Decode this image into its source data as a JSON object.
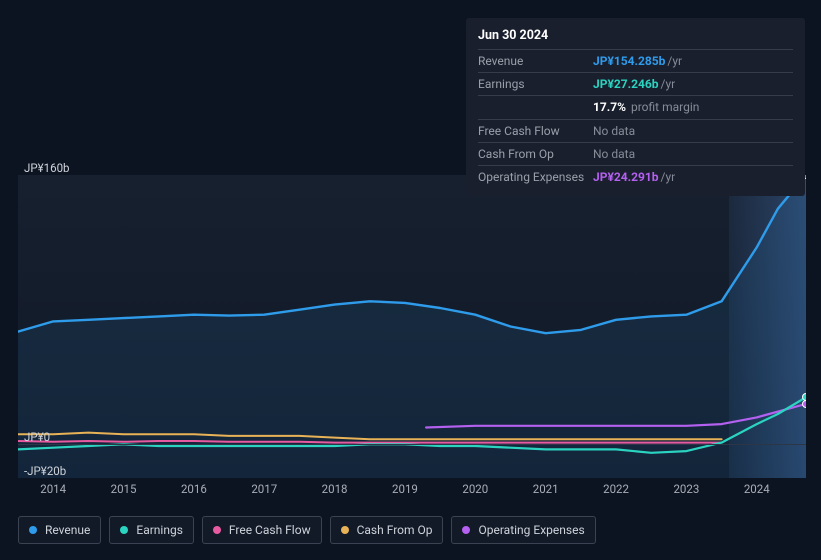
{
  "tooltip": {
    "date": "Jun 30 2024",
    "rows": [
      {
        "label": "Revenue",
        "value": "JP¥154.285b",
        "suffix": "/yr",
        "color": "#2f9ceb",
        "nodata": false
      },
      {
        "label": "Earnings",
        "value": "JP¥27.246b",
        "suffix": "/yr",
        "color": "#2bd4c0",
        "nodata": false,
        "subline": {
          "val": "17.7%",
          "txt": "profit margin"
        }
      },
      {
        "label": "Free Cash Flow",
        "value": "No data",
        "suffix": "",
        "color": "#868c97",
        "nodata": true
      },
      {
        "label": "Cash From Op",
        "value": "No data",
        "suffix": "",
        "color": "#868c97",
        "nodata": true
      },
      {
        "label": "Operating Expenses",
        "value": "JP¥24.291b",
        "suffix": "/yr",
        "color": "#b460f0",
        "nodata": false
      }
    ]
  },
  "chart": {
    "type": "line",
    "background_color": "#14202f",
    "y": {
      "min": -20,
      "max": 160,
      "ticks": [
        {
          "v": 160,
          "label": "JP¥160b"
        },
        {
          "v": 0,
          "label": "JP¥0"
        },
        {
          "v": -20,
          "label": "-JP¥20b"
        }
      ],
      "axis_line_at": 0
    },
    "x": {
      "min": 2013.5,
      "max": 2024.7,
      "ticks": [
        2014,
        2015,
        2016,
        2017,
        2018,
        2019,
        2020,
        2021,
        2022,
        2023,
        2024
      ],
      "highlight_from": 2023.6
    },
    "series": [
      {
        "name": "Revenue",
        "color": "#2f9ceb",
        "width": 2.4,
        "points": [
          [
            2013.5,
            67
          ],
          [
            2014.0,
            73
          ],
          [
            2014.5,
            74
          ],
          [
            2015.0,
            75
          ],
          [
            2015.5,
            76
          ],
          [
            2016.0,
            77
          ],
          [
            2016.5,
            76.5
          ],
          [
            2017.0,
            77
          ],
          [
            2017.5,
            80
          ],
          [
            2018.0,
            83
          ],
          [
            2018.5,
            85
          ],
          [
            2019.0,
            84
          ],
          [
            2019.5,
            81
          ],
          [
            2020.0,
            77
          ],
          [
            2020.5,
            70
          ],
          [
            2021.0,
            66
          ],
          [
            2021.5,
            68
          ],
          [
            2022.0,
            74
          ],
          [
            2022.5,
            76
          ],
          [
            2023.0,
            77
          ],
          [
            2023.5,
            85
          ],
          [
            2024.0,
            117
          ],
          [
            2024.3,
            140
          ],
          [
            2024.7,
            160
          ]
        ]
      },
      {
        "name": "Operating Expenses",
        "color": "#b460f0",
        "width": 2.2,
        "points": [
          [
            2019.3,
            10
          ],
          [
            2020.0,
            11
          ],
          [
            2021.0,
            11
          ],
          [
            2022.0,
            11
          ],
          [
            2023.0,
            11
          ],
          [
            2023.5,
            12
          ],
          [
            2024.0,
            16
          ],
          [
            2024.7,
            24
          ]
        ]
      },
      {
        "name": "Cash From Op",
        "color": "#e8b257",
        "width": 2.0,
        "points": [
          [
            2013.5,
            6
          ],
          [
            2014.0,
            6
          ],
          [
            2014.5,
            7
          ],
          [
            2015.0,
            6
          ],
          [
            2015.5,
            6
          ],
          [
            2016.0,
            6
          ],
          [
            2016.5,
            5
          ],
          [
            2017.0,
            5
          ],
          [
            2017.5,
            5
          ],
          [
            2018.0,
            4
          ],
          [
            2018.5,
            3
          ],
          [
            2019.0,
            3
          ],
          [
            2019.5,
            3
          ],
          [
            2020.0,
            3
          ],
          [
            2020.5,
            3
          ],
          [
            2021.0,
            3
          ],
          [
            2021.5,
            3
          ],
          [
            2022.0,
            3
          ],
          [
            2022.5,
            3
          ],
          [
            2023.0,
            3
          ],
          [
            2023.5,
            3
          ]
        ]
      },
      {
        "name": "Free Cash Flow",
        "color": "#e85aa0",
        "width": 2.0,
        "points": [
          [
            2013.5,
            2
          ],
          [
            2014.0,
            1.5
          ],
          [
            2014.5,
            2
          ],
          [
            2015.0,
            1.5
          ],
          [
            2015.5,
            2
          ],
          [
            2016.0,
            2
          ],
          [
            2016.5,
            1.5
          ],
          [
            2017.0,
            1.5
          ],
          [
            2017.5,
            1.5
          ],
          [
            2018.0,
            1
          ],
          [
            2018.5,
            1
          ],
          [
            2019.0,
            1
          ],
          [
            2019.5,
            1
          ],
          [
            2020.0,
            1
          ],
          [
            2020.5,
            1
          ],
          [
            2021.0,
            1
          ],
          [
            2021.5,
            1
          ],
          [
            2022.0,
            1
          ],
          [
            2022.5,
            1
          ],
          [
            2023.0,
            1
          ],
          [
            2023.5,
            1
          ]
        ]
      },
      {
        "name": "Earnings",
        "color": "#2bd4c0",
        "width": 2.2,
        "points": [
          [
            2013.5,
            -3
          ],
          [
            2014.0,
            -2
          ],
          [
            2014.5,
            -1
          ],
          [
            2015.0,
            0
          ],
          [
            2015.5,
            -1
          ],
          [
            2016.0,
            -1
          ],
          [
            2016.5,
            -1
          ],
          [
            2017.0,
            -1
          ],
          [
            2017.5,
            -1
          ],
          [
            2018.0,
            -1
          ],
          [
            2018.5,
            0
          ],
          [
            2019.0,
            0
          ],
          [
            2019.5,
            -1
          ],
          [
            2020.0,
            -1
          ],
          [
            2020.5,
            -2
          ],
          [
            2021.0,
            -3
          ],
          [
            2021.5,
            -3
          ],
          [
            2022.0,
            -3
          ],
          [
            2022.5,
            -5
          ],
          [
            2023.0,
            -4
          ],
          [
            2023.5,
            1
          ],
          [
            2024.0,
            12
          ],
          [
            2024.3,
            18
          ],
          [
            2024.7,
            28
          ]
        ]
      }
    ],
    "markers_at_x": 2024.7,
    "marker_series": [
      "Revenue",
      "Earnings",
      "Operating Expenses"
    ]
  },
  "legend": [
    {
      "label": "Revenue",
      "color": "#2f9ceb"
    },
    {
      "label": "Earnings",
      "color": "#2bd4c0"
    },
    {
      "label": "Free Cash Flow",
      "color": "#e85aa0"
    },
    {
      "label": "Cash From Op",
      "color": "#e8b257"
    },
    {
      "label": "Operating Expenses",
      "color": "#b460f0"
    }
  ]
}
